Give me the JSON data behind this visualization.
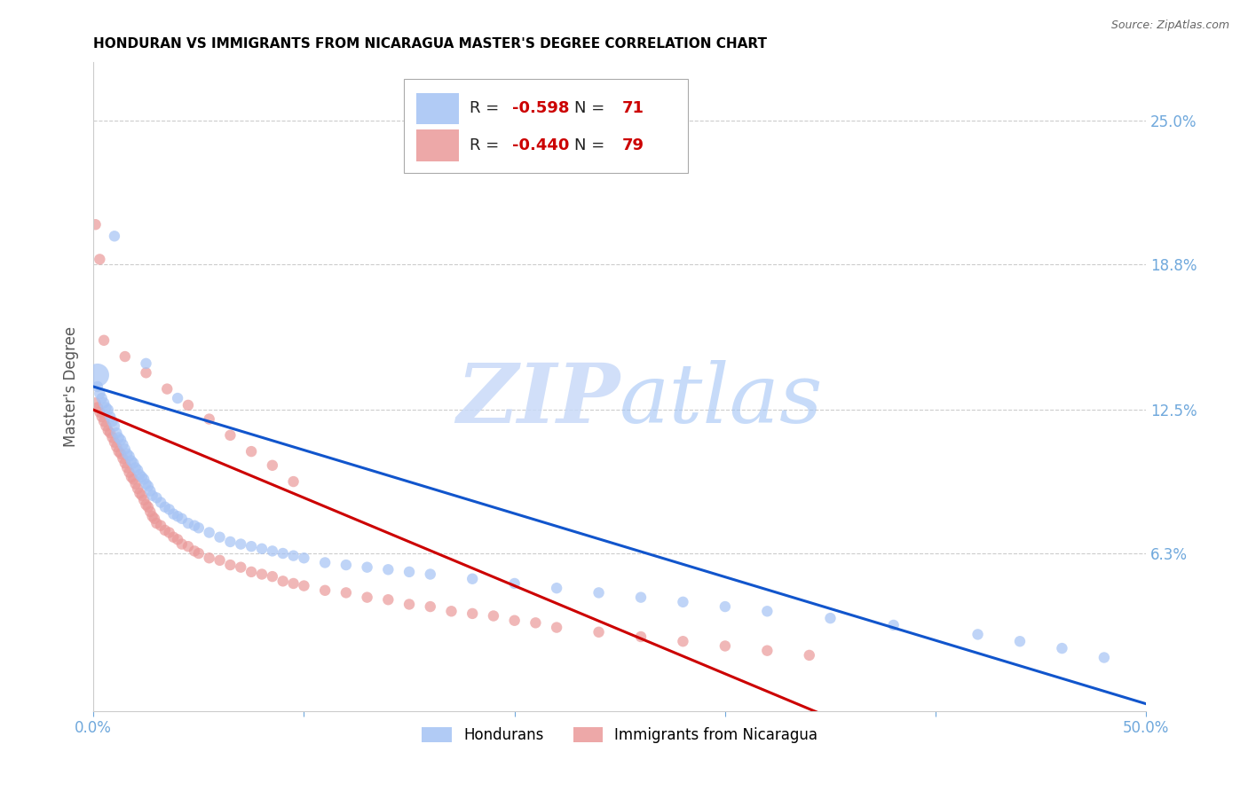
{
  "title": "HONDURAN VS IMMIGRANTS FROM NICARAGUA MASTER'S DEGREE CORRELATION CHART",
  "source": "Source: ZipAtlas.com",
  "ylabel": "Master's Degree",
  "ytick_labels": [
    "25.0%",
    "18.8%",
    "12.5%",
    "6.3%"
  ],
  "ytick_values": [
    0.25,
    0.188,
    0.125,
    0.063
  ],
  "xmin": 0.0,
  "xmax": 0.5,
  "ymin": -0.005,
  "ymax": 0.275,
  "blue_color": "#a4c2f4",
  "pink_color": "#ea9999",
  "blue_line_color": "#1155cc",
  "pink_line_color": "#cc0000",
  "legend_blue_R": "R = ",
  "legend_blue_R_val": "-0.598",
  "legend_blue_N": "N = ",
  "legend_blue_N_val": "71",
  "legend_pink_R": "R = ",
  "legend_pink_R_val": "-0.440",
  "legend_pink_N": "N = ",
  "legend_pink_N_val": "79",
  "watermark_zip": "ZIP",
  "watermark_atlas": "atlas",
  "grid_color": "#cccccc",
  "title_color": "#000000",
  "tick_color": "#6fa8dc",
  "background_color": "#ffffff",
  "blue_scatter_x": [
    0.002,
    0.003,
    0.004,
    0.005,
    0.006,
    0.007,
    0.008,
    0.009,
    0.01,
    0.011,
    0.012,
    0.013,
    0.014,
    0.015,
    0.016,
    0.017,
    0.018,
    0.019,
    0.02,
    0.021,
    0.022,
    0.023,
    0.024,
    0.025,
    0.026,
    0.027,
    0.028,
    0.03,
    0.032,
    0.034,
    0.036,
    0.038,
    0.04,
    0.042,
    0.045,
    0.048,
    0.05,
    0.055,
    0.06,
    0.065,
    0.07,
    0.075,
    0.08,
    0.085,
    0.09,
    0.095,
    0.1,
    0.11,
    0.12,
    0.13,
    0.14,
    0.15,
    0.16,
    0.18,
    0.2,
    0.22,
    0.24,
    0.26,
    0.28,
    0.3,
    0.32,
    0.35,
    0.38,
    0.42,
    0.44,
    0.46,
    0.48,
    0.01,
    0.025,
    0.04,
    0.002
  ],
  "blue_scatter_y": [
    0.135,
    0.132,
    0.13,
    0.128,
    0.126,
    0.125,
    0.122,
    0.12,
    0.118,
    0.115,
    0.113,
    0.112,
    0.11,
    0.108,
    0.106,
    0.105,
    0.103,
    0.102,
    0.1,
    0.099,
    0.097,
    0.096,
    0.095,
    0.093,
    0.092,
    0.09,
    0.088,
    0.087,
    0.085,
    0.083,
    0.082,
    0.08,
    0.079,
    0.078,
    0.076,
    0.075,
    0.074,
    0.072,
    0.07,
    0.068,
    0.067,
    0.066,
    0.065,
    0.064,
    0.063,
    0.062,
    0.061,
    0.059,
    0.058,
    0.057,
    0.056,
    0.055,
    0.054,
    0.052,
    0.05,
    0.048,
    0.046,
    0.044,
    0.042,
    0.04,
    0.038,
    0.035,
    0.032,
    0.028,
    0.025,
    0.022,
    0.018,
    0.2,
    0.145,
    0.13,
    0.14
  ],
  "blue_scatter_size": [
    80,
    80,
    80,
    80,
    80,
    80,
    80,
    80,
    80,
    80,
    80,
    80,
    80,
    80,
    80,
    80,
    80,
    80,
    80,
    80,
    80,
    80,
    80,
    80,
    80,
    80,
    80,
    80,
    80,
    80,
    80,
    80,
    80,
    80,
    80,
    80,
    80,
    80,
    80,
    80,
    80,
    80,
    80,
    80,
    80,
    80,
    80,
    80,
    80,
    80,
    80,
    80,
    80,
    80,
    80,
    80,
    80,
    80,
    80,
    80,
    80,
    80,
    80,
    80,
    80,
    80,
    80,
    80,
    80,
    80,
    350
  ],
  "pink_scatter_x": [
    0.001,
    0.002,
    0.003,
    0.004,
    0.005,
    0.006,
    0.007,
    0.008,
    0.009,
    0.01,
    0.011,
    0.012,
    0.013,
    0.014,
    0.015,
    0.016,
    0.017,
    0.018,
    0.019,
    0.02,
    0.021,
    0.022,
    0.023,
    0.024,
    0.025,
    0.026,
    0.027,
    0.028,
    0.029,
    0.03,
    0.032,
    0.034,
    0.036,
    0.038,
    0.04,
    0.042,
    0.045,
    0.048,
    0.05,
    0.055,
    0.06,
    0.065,
    0.07,
    0.075,
    0.08,
    0.085,
    0.09,
    0.095,
    0.1,
    0.11,
    0.12,
    0.13,
    0.14,
    0.15,
    0.16,
    0.17,
    0.18,
    0.19,
    0.2,
    0.21,
    0.22,
    0.24,
    0.26,
    0.28,
    0.3,
    0.32,
    0.34,
    0.005,
    0.015,
    0.025,
    0.035,
    0.045,
    0.055,
    0.065,
    0.075,
    0.085,
    0.095,
    0.001,
    0.003
  ],
  "pink_scatter_y": [
    0.128,
    0.126,
    0.124,
    0.122,
    0.12,
    0.118,
    0.116,
    0.115,
    0.113,
    0.111,
    0.109,
    0.107,
    0.106,
    0.104,
    0.102,
    0.1,
    0.098,
    0.096,
    0.095,
    0.093,
    0.091,
    0.089,
    0.088,
    0.086,
    0.084,
    0.083,
    0.081,
    0.079,
    0.078,
    0.076,
    0.075,
    0.073,
    0.072,
    0.07,
    0.069,
    0.067,
    0.066,
    0.064,
    0.063,
    0.061,
    0.06,
    0.058,
    0.057,
    0.055,
    0.054,
    0.053,
    0.051,
    0.05,
    0.049,
    0.047,
    0.046,
    0.044,
    0.043,
    0.041,
    0.04,
    0.038,
    0.037,
    0.036,
    0.034,
    0.033,
    0.031,
    0.029,
    0.027,
    0.025,
    0.023,
    0.021,
    0.019,
    0.155,
    0.148,
    0.141,
    0.134,
    0.127,
    0.121,
    0.114,
    0.107,
    0.101,
    0.094,
    0.205,
    0.19
  ],
  "pink_scatter_size": [
    80,
    80,
    80,
    80,
    80,
    80,
    80,
    80,
    80,
    80,
    80,
    80,
    80,
    80,
    80,
    80,
    80,
    80,
    80,
    80,
    80,
    80,
    80,
    80,
    80,
    80,
    80,
    80,
    80,
    80,
    80,
    80,
    80,
    80,
    80,
    80,
    80,
    80,
    80,
    80,
    80,
    80,
    80,
    80,
    80,
    80,
    80,
    80,
    80,
    80,
    80,
    80,
    80,
    80,
    80,
    80,
    80,
    80,
    80,
    80,
    80,
    80,
    80,
    80,
    80,
    80,
    80,
    80,
    80,
    80,
    80,
    80,
    80,
    80,
    80,
    80,
    80,
    80,
    80
  ],
  "blue_line_x": [
    0.0,
    0.5
  ],
  "blue_line_y": [
    0.135,
    -0.002
  ],
  "pink_line_x": [
    0.0,
    0.35
  ],
  "pink_line_y": [
    0.125,
    -0.008
  ],
  "xtick_positions": [
    0.0,
    0.1,
    0.2,
    0.3,
    0.4,
    0.5
  ],
  "xtick_labels": [
    "0.0%",
    "",
    "",
    "",
    "",
    "50.0%"
  ]
}
